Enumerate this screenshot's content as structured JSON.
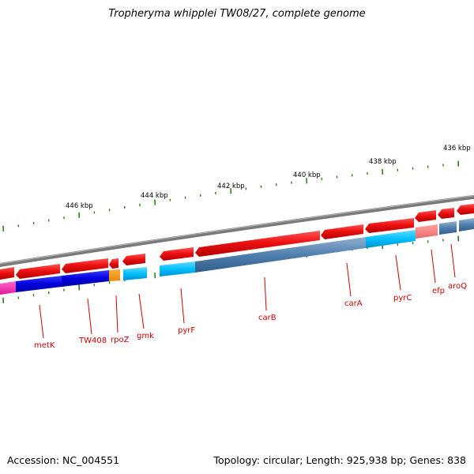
{
  "title": "Tropheryma whipplei TW08/27, complete genome",
  "footer": {
    "accession": "Accession: NC_004551",
    "summary": "Topology: circular; Length: 925,938 bp; Genes: 838"
  },
  "colors": {
    "backbone": "#808080",
    "cds_forward": "#ee1111",
    "gene_label": "#cc0000",
    "tick": "#2e7d1e"
  },
  "scale_ticks": [
    "446 kbp",
    "444 kbp",
    "442 kbp",
    "440 kbp",
    "438 kbp",
    "436 kbp"
  ],
  "gene_labels": [
    "metK",
    "TW408",
    "rpoZ",
    "gmk",
    "pyrF",
    "carB",
    "carA",
    "pyrC",
    "efp",
    "aroQ"
  ]
}
